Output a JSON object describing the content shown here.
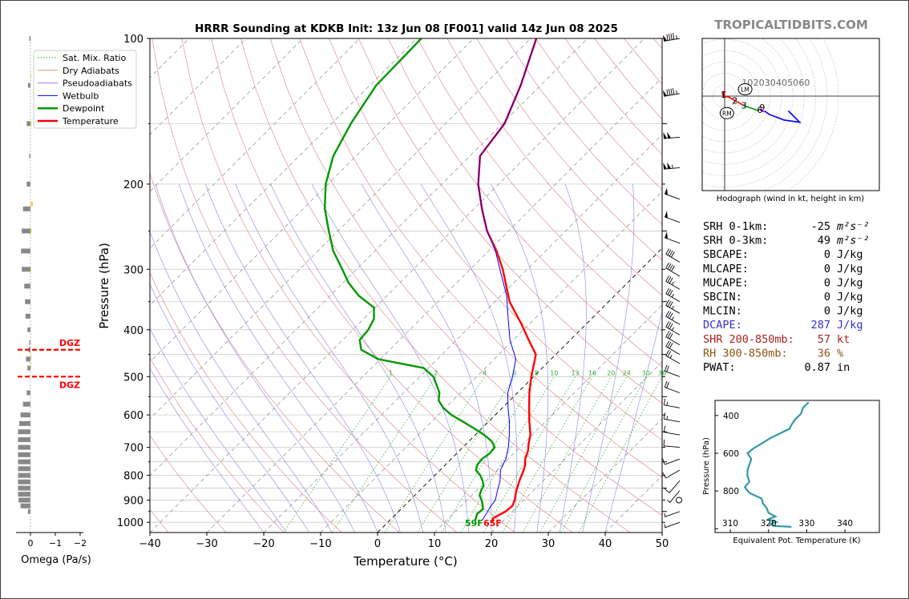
{
  "brand": "TROPICALTIDBITS.COM",
  "title": "HRRR Sounding at KDKB Init: 13z Jun 08 [F001] valid 14z Jun 08 2025",
  "skewt": {
    "xlabel": "Temperature (°C)",
    "ylabel": "Pressure (hPa)",
    "x_ticks": [
      "−40",
      "−30",
      "−20",
      "−10",
      "0",
      "10",
      "20",
      "30",
      "40",
      "50"
    ],
    "y_ticks": [
      "100",
      "200",
      "300",
      "400",
      "500",
      "600",
      "700",
      "800",
      "900",
      "1000"
    ],
    "surface_dewpoint": "59F",
    "surface_temperature": "65F",
    "mixing_ratio_labels": [
      "1",
      "2",
      "4",
      "6",
      "8",
      "10",
      "13",
      "16",
      "20",
      "24",
      "30",
      "36"
    ],
    "legend": [
      "Sat. Mix. Ratio",
      "Dry Adiabats",
      "Pseudoadiabats",
      "Wetbulb",
      "Dewpoint",
      "Temperature"
    ]
  },
  "chart_data": [
    {
      "type": "line",
      "name": "skew-t",
      "xlim": [
        -40,
        50
      ],
      "ylim": [
        1050,
        100
      ],
      "y_scale": "log",
      "skew": "45deg",
      "series": [
        {
          "name": "Temperature",
          "color": "#ff0000",
          "points": [
            [
              1000,
              18.3
            ],
            [
              980,
              17.8
            ],
            [
              950,
              18.8
            ],
            [
              925,
              19.0
            ],
            [
              900,
              18.4
            ],
            [
              860,
              17.0
            ],
            [
              820,
              15.8
            ],
            [
              780,
              14.7
            ],
            [
              760,
              14.0
            ],
            [
              740,
              13.0
            ],
            [
              710,
              12.0
            ],
            [
              690,
              11.0
            ],
            [
              660,
              9.7
            ],
            [
              620,
              7.2
            ],
            [
              580,
              4.7
            ],
            [
              540,
              2.1
            ],
            [
              500,
              -0.4
            ],
            [
              450,
              -3.5
            ],
            [
              420,
              -7.3
            ],
            [
              390,
              -11.3
            ],
            [
              350,
              -17.4
            ],
            [
              300,
              -24.3
            ],
            [
              275,
              -28.6
            ],
            [
              250,
              -33.8
            ],
            [
              225,
              -38.6
            ],
            [
              200,
              -43.6
            ],
            [
              175,
              -48.2
            ],
            [
              150,
              -49.6
            ],
            [
              125,
              -53.5
            ],
            [
              100,
              -59.0
            ]
          ]
        },
        {
          "name": "Dewpoint",
          "color": "#009900",
          "points": [
            [
              990,
              15.0
            ],
            [
              960,
              14.2
            ],
            [
              940,
              14.4
            ],
            [
              920,
              13.6
            ],
            [
              900,
              12.6
            ],
            [
              880,
              11.4
            ],
            [
              860,
              10.8
            ],
            [
              840,
              10.4
            ],
            [
              820,
              9.3
            ],
            [
              800,
              8.0
            ],
            [
              780,
              6.3
            ],
            [
              760,
              5.6
            ],
            [
              740,
              5.4
            ],
            [
              720,
              5.8
            ],
            [
              700,
              5.6
            ],
            [
              680,
              4.0
            ],
            [
              660,
              1.6
            ],
            [
              640,
              -1.3
            ],
            [
              620,
              -4.4
            ],
            [
              600,
              -7.7
            ],
            [
              580,
              -10.4
            ],
            [
              560,
              -12.5
            ],
            [
              540,
              -13.7
            ],
            [
              520,
              -15.6
            ],
            [
              500,
              -17.6
            ],
            [
              480,
              -20.8
            ],
            [
              460,
              -30.4
            ],
            [
              440,
              -35.0
            ],
            [
              420,
              -37.0
            ],
            [
              400,
              -37.3
            ],
            [
              380,
              -38.2
            ],
            [
              360,
              -40.2
            ],
            [
              340,
              -45.0
            ],
            [
              320,
              -49.0
            ],
            [
              300,
              -52.5
            ],
            [
              275,
              -57.3
            ],
            [
              250,
              -61.6
            ],
            [
              225,
              -66.2
            ],
            [
              200,
              -70.4
            ],
            [
              175,
              -74.0
            ],
            [
              150,
              -76.6
            ],
            [
              125,
              -78.9
            ],
            [
              100,
              -79.2
            ]
          ]
        },
        {
          "name": "Wetbulb",
          "color": "#0000ff",
          "points": [
            [
              990,
              16.2
            ],
            [
              960,
              15.8
            ],
            [
              930,
              15.3
            ],
            [
              900,
              15.0
            ],
            [
              860,
              13.7
            ],
            [
              820,
              12.4
            ],
            [
              780,
              10.6
            ],
            [
              740,
              9.6
            ],
            [
              700,
              8.0
            ],
            [
              660,
              6.0
            ],
            [
              620,
              3.7
            ],
            [
              580,
              1.0
            ],
            [
              540,
              -1.7
            ],
            [
              500,
              -3.7
            ],
            [
              460,
              -6.2
            ],
            [
              420,
              -10.6
            ],
            [
              380,
              -14.6
            ],
            [
              340,
              -19.0
            ],
            [
              300,
              -24.8
            ],
            [
              275,
              -28.8
            ],
            [
              250,
              -33.8
            ],
            [
              225,
              -38.6
            ],
            [
              200,
              -43.6
            ],
            [
              175,
              -48.2
            ],
            [
              150,
              -49.6
            ],
            [
              125,
              -53.5
            ],
            [
              100,
              -59.0
            ]
          ]
        }
      ]
    },
    {
      "type": "line",
      "name": "hodograph",
      "xlabel": "Hodograph (wind in kt, height in km)",
      "ring_labels": [
        "10",
        "20",
        "30",
        "40",
        "50",
        "60"
      ],
      "height_labels": [
        {
          "label": "1",
          "u": -1,
          "v": 1.5
        },
        {
          "label": "2",
          "u": 9,
          "v": -4
        },
        {
          "label": "3",
          "u": 17,
          "v": -8
        },
        {
          "label": "6",
          "u": 31,
          "v": -12
        },
        {
          "label": "9",
          "u": 33,
          "v": -10
        }
      ],
      "markers": [
        {
          "label": "LM",
          "u": 18,
          "v": 6
        },
        {
          "label": "RM",
          "u": 2,
          "v": -15
        }
      ],
      "series": [
        {
          "color": "#ff0000",
          "points": [
            [
              -1,
              0
            ],
            [
              -2,
              2.5
            ],
            [
              0,
              4
            ],
            [
              1,
              3.5
            ]
          ]
        },
        {
          "color": "#ff0000",
          "points": [
            [
              -1,
              0
            ],
            [
              4,
              -1
            ],
            [
              9,
              -4
            ],
            [
              13,
              -6
            ],
            [
              16,
              -8
            ]
          ]
        },
        {
          "color": "#009900",
          "points": [
            [
              16,
              -8
            ],
            [
              22,
              -10
            ],
            [
              30,
              -13
            ]
          ]
        },
        {
          "color": "#cc00cc",
          "points": [
            [
              31,
              -12
            ],
            [
              35,
              -14
            ]
          ]
        },
        {
          "color": "#0000ff",
          "points": [
            [
              35,
              -13
            ],
            [
              39,
              -16
            ],
            [
              52,
              -21
            ],
            [
              66,
              -23
            ],
            [
              56,
              -13
            ]
          ]
        }
      ]
    },
    {
      "type": "line",
      "name": "equivalent-potential-temperature",
      "xlabel": "Equivalent Pot. Temperature (K)",
      "ylabel": "Pressure (hPa)",
      "x_ticks": [
        "310",
        "320",
        "330",
        "340"
      ],
      "y_ticks": [
        "400",
        "600",
        "800"
      ],
      "xlim": [
        306,
        349
      ],
      "ylim": [
        1020,
        320
      ],
      "series": [
        {
          "color": "#3399aa",
          "points": [
            [
              990,
              326.0
            ],
            [
              985,
              321.5
            ],
            [
              975,
              320.5
            ],
            [
              965,
              322.0
            ],
            [
              950,
              320.0
            ],
            [
              935,
              321.8
            ],
            [
              915,
              320.0
            ],
            [
              890,
              319.5
            ],
            [
              865,
              318.5
            ],
            [
              840,
              318.2
            ],
            [
              810,
              315.0
            ],
            [
              780,
              313.8
            ],
            [
              750,
              315.0
            ],
            [
              720,
              314.5
            ],
            [
              690,
              314.5
            ],
            [
              660,
              315.0
            ],
            [
              630,
              315.5
            ],
            [
              600,
              314.5
            ],
            [
              575,
              316.0
            ],
            [
              545,
              318.5
            ],
            [
              520,
              320.5
            ],
            [
              495,
              323.0
            ],
            [
              470,
              325.5
            ],
            [
              450,
              326.0
            ],
            [
              420,
              327.0
            ],
            [
              390,
              328.5
            ],
            [
              360,
              329.0
            ],
            [
              330,
              330.5
            ]
          ]
        }
      ]
    },
    {
      "type": "bar",
      "name": "omega",
      "xlabel": "Omega (Pa/s)",
      "x_ticks": [
        "0",
        "−1",
        "−2"
      ],
      "dgz_label": "DGZ",
      "dgz_pressures": [
        440,
        500
      ],
      "bars": [
        [
          100,
          0.05
        ],
        [
          125,
          0.1
        ],
        [
          150,
          0.15
        ],
        [
          175,
          0.05
        ],
        [
          200,
          0.15
        ],
        [
          225,
          0.3
        ],
        [
          250,
          0.35
        ],
        [
          275,
          0.38
        ],
        [
          300,
          0.35
        ],
        [
          325,
          0.25
        ],
        [
          350,
          0.22
        ],
        [
          375,
          0.2
        ],
        [
          400,
          0.12
        ],
        [
          425,
          0.05
        ],
        [
          440,
          0.08
        ],
        [
          460,
          0.18
        ],
        [
          480,
          0.12
        ],
        [
          540,
          0.15
        ],
        [
          570,
          0.3
        ],
        [
          600,
          0.4
        ],
        [
          625,
          0.45
        ],
        [
          650,
          0.5
        ],
        [
          675,
          0.5
        ],
        [
          700,
          0.5
        ],
        [
          725,
          0.5
        ],
        [
          750,
          0.5
        ],
        [
          775,
          0.5
        ],
        [
          800,
          0.5
        ],
        [
          825,
          0.5
        ],
        [
          850,
          0.5
        ],
        [
          875,
          0.5
        ],
        [
          900,
          0.48
        ],
        [
          925,
          0.4
        ],
        [
          950,
          0.1
        ]
      ]
    }
  ],
  "indices": [
    {
      "label": "SRH 0-1km:",
      "value": "-25",
      "unit": "m²s⁻²",
      "color": "#000000"
    },
    {
      "label": "SRH 0-3km:",
      "value": "49",
      "unit": "m²s⁻²",
      "color": "#000000"
    },
    {
      "label": "SBCAPE:",
      "value": "0",
      "unit": "J/kg",
      "color": "#000000"
    },
    {
      "label": "MLCAPE:",
      "value": "0",
      "unit": "J/kg",
      "color": "#000000"
    },
    {
      "label": "MUCAPE:",
      "value": "0",
      "unit": "J/kg",
      "color": "#000000"
    },
    {
      "label": "SBCIN:",
      "value": "0",
      "unit": "J/kg",
      "color": "#000000"
    },
    {
      "label": "MLCIN:",
      "value": "0",
      "unit": "J/kg",
      "color": "#000000"
    },
    {
      "label": "DCAPE:",
      "value": "287",
      "unit": "J/kg",
      "color": "#3333cc"
    },
    {
      "label": "SHR 200-850mb:",
      "value": "57",
      "unit": "kt",
      "color": "#aa2222"
    },
    {
      "label": "RH 300-850mb:",
      "value": "36",
      "unit": "%",
      "color": "#885511"
    },
    {
      "label": "PWAT:",
      "value": "0.87",
      "unit": "in",
      "color": "#000000"
    }
  ],
  "wind_barbs": [
    {
      "p": 100,
      "speed": 95,
      "dir": 260
    },
    {
      "p": 130,
      "speed": 95,
      "dir": 260
    },
    {
      "p": 160,
      "speed": 100,
      "dir": 265
    },
    {
      "p": 185,
      "speed": 105,
      "dir": 265
    },
    {
      "p": 215,
      "speed": 50,
      "dir": 290
    },
    {
      "p": 240,
      "speed": 50,
      "dir": 290
    },
    {
      "p": 265,
      "speed": 50,
      "dir": 290
    },
    {
      "p": 290,
      "speed": 40,
      "dir": 300
    },
    {
      "p": 310,
      "speed": 40,
      "dir": 300
    },
    {
      "p": 330,
      "speed": 35,
      "dir": 300
    },
    {
      "p": 350,
      "speed": 35,
      "dir": 300
    },
    {
      "p": 370,
      "speed": 35,
      "dir": 300
    },
    {
      "p": 390,
      "speed": 35,
      "dir": 300
    },
    {
      "p": 410,
      "speed": 35,
      "dir": 300
    },
    {
      "p": 430,
      "speed": 30,
      "dir": 300
    },
    {
      "p": 450,
      "speed": 30,
      "dir": 300
    },
    {
      "p": 470,
      "speed": 25,
      "dir": 300
    },
    {
      "p": 500,
      "speed": 20,
      "dir": 290
    },
    {
      "p": 540,
      "speed": 20,
      "dir": 290
    },
    {
      "p": 580,
      "speed": 15,
      "dir": 280
    },
    {
      "p": 620,
      "speed": 15,
      "dir": 280
    },
    {
      "p": 660,
      "speed": 10,
      "dir": 280
    },
    {
      "p": 700,
      "speed": 10,
      "dir": 275
    },
    {
      "p": 740,
      "speed": 10,
      "dir": 250
    },
    {
      "p": 780,
      "speed": 10,
      "dir": 240
    },
    {
      "p": 820,
      "speed": 10,
      "dir": 220
    },
    {
      "p": 860,
      "speed": 5,
      "dir": 220
    },
    {
      "p": 900,
      "speed": 0,
      "dir": 0
    },
    {
      "p": 950,
      "speed": 5,
      "dir": 250
    },
    {
      "p": 1000,
      "speed": 5,
      "dir": 250
    }
  ]
}
